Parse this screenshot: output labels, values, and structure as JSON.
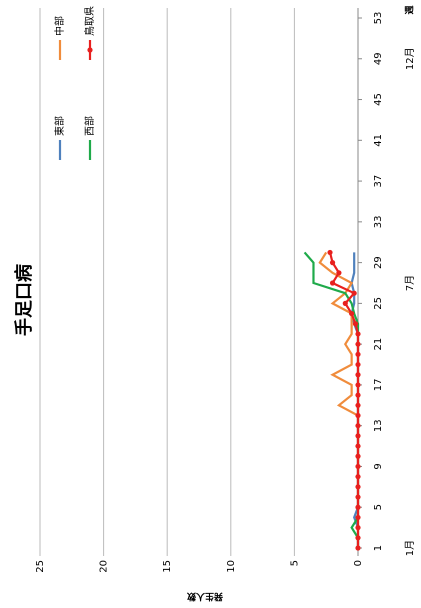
{
  "chart_data": {
    "type": "line",
    "title": "手足口病",
    "ylabel": "発生人数",
    "xlabel": "週",
    "month_labels": [
      "1月",
      "7月",
      "12月"
    ],
    "x": [
      1,
      2,
      3,
      4,
      5,
      6,
      7,
      8,
      9,
      10,
      11,
      12,
      13,
      14,
      15,
      16,
      17,
      18,
      19,
      20,
      21,
      22,
      23,
      24,
      25,
      26,
      27,
      28,
      29,
      30
    ],
    "series": [
      {
        "name": "東部",
        "color": "#4f81bd",
        "values": [
          0,
          0,
          0,
          0.3,
          0,
          0,
          0,
          0,
          0,
          0,
          0,
          0,
          0,
          0,
          0,
          0,
          0,
          0,
          0,
          0,
          0,
          0,
          0.3,
          0.5,
          0.3,
          0.3,
          0.5,
          0.3,
          0.3,
          0.3
        ]
      },
      {
        "name": "中部",
        "color": "#f08c3c",
        "values": [
          0,
          0,
          0,
          0,
          0,
          0,
          0,
          0,
          0,
          0,
          0,
          0,
          0,
          0,
          1.5,
          0.5,
          0.5,
          2,
          0.5,
          0.5,
          1,
          0.5,
          0.5,
          0.5,
          2,
          1,
          0.5,
          2,
          3,
          2.5
        ]
      },
      {
        "name": "西部",
        "color": "#1faa4a",
        "values": [
          0,
          0,
          0.5,
          0,
          0,
          0,
          0,
          0,
          0,
          0,
          0,
          0,
          0,
          0,
          0,
          0,
          0,
          0,
          0,
          0,
          0,
          0,
          0,
          0.3,
          0.5,
          1,
          3.5,
          3.5,
          3.5,
          4.2
        ]
      },
      {
        "name": "鳥取県",
        "color": "#e8201e",
        "marker": true,
        "values": [
          0,
          0,
          0,
          0,
          0,
          0,
          0,
          0,
          0,
          0,
          0,
          0,
          0,
          0,
          0,
          0,
          0,
          0,
          0,
          0,
          0,
          0,
          0.2,
          0.5,
          1,
          0.3,
          2,
          1.5,
          2,
          2.2
        ]
      }
    ],
    "xlim": [
      1,
      53
    ],
    "xticks": [
      1,
      5,
      9,
      13,
      17,
      21,
      25,
      29,
      33,
      37,
      41,
      45,
      49,
      53
    ],
    "ylim": [
      0,
      25
    ],
    "yticks": [
      0,
      5,
      10,
      15,
      20,
      25
    ],
    "grid": true,
    "legend": "top-right"
  }
}
